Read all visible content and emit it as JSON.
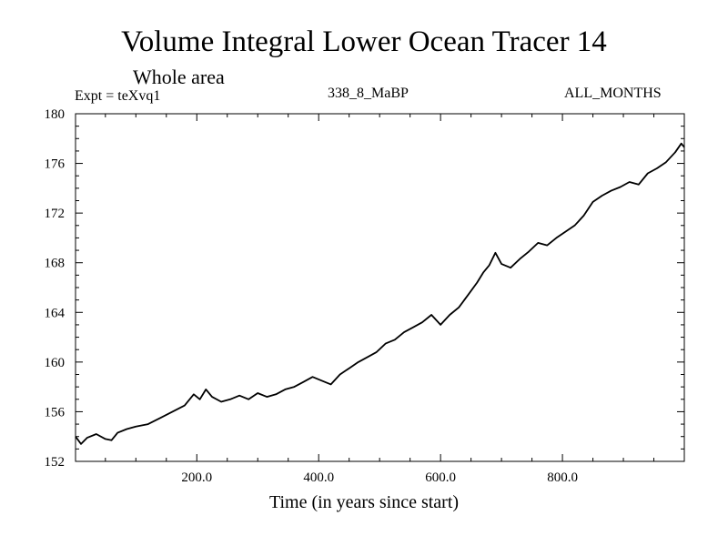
{
  "header": {
    "title": "Volume Integral Lower Ocean Tracer 14",
    "subtitle": "Whole area",
    "experiment": "Expt = teXvq1",
    "run_name": "338_8_MaBP",
    "season": "ALL_MONTHS"
  },
  "chart_data": {
    "type": "line",
    "title": "Volume Integral Lower Ocean Tracer 14",
    "subtitle": "Whole area",
    "xlabel": "Time (in years since start)",
    "ylabel": "",
    "xlim": [
      1,
      1000
    ],
    "ylim": [
      152,
      180
    ],
    "x_ticks": [
      200,
      400,
      600,
      800
    ],
    "x_tick_labels": [
      "200.0",
      "400.0",
      "600.0",
      "800.0"
    ],
    "y_ticks": [
      152,
      156,
      160,
      164,
      168,
      172,
      176,
      180
    ],
    "y_tick_labels": [
      "152",
      "156",
      "160",
      "164",
      "168",
      "172",
      "176",
      "180"
    ],
    "series": [
      {
        "name": "Tracer 14",
        "x": [
          1,
          10,
          20,
          35,
          50,
          60,
          70,
          85,
          100,
          120,
          140,
          160,
          180,
          195,
          205,
          215,
          225,
          240,
          255,
          270,
          285,
          300,
          315,
          330,
          345,
          360,
          375,
          390,
          405,
          420,
          435,
          450,
          465,
          480,
          495,
          510,
          525,
          540,
          555,
          570,
          585,
          600,
          615,
          630,
          645,
          660,
          670,
          680,
          690,
          700,
          715,
          730,
          745,
          760,
          775,
          790,
          805,
          820,
          835,
          850,
          865,
          880,
          895,
          910,
          925,
          940,
          955,
          970,
          985,
          995,
          1000
        ],
        "values": [
          154.0,
          153.4,
          153.9,
          154.2,
          153.8,
          153.7,
          154.3,
          154.6,
          154.8,
          155.0,
          155.5,
          156.0,
          156.5,
          157.4,
          157.0,
          157.8,
          157.2,
          156.8,
          157.0,
          157.3,
          157.0,
          157.5,
          157.2,
          157.4,
          157.8,
          158.0,
          158.4,
          158.8,
          158.5,
          158.2,
          159.0,
          159.5,
          160.0,
          160.4,
          160.8,
          161.5,
          161.8,
          162.4,
          162.8,
          163.2,
          163.8,
          163.0,
          163.8,
          164.4,
          165.4,
          166.4,
          167.2,
          167.8,
          168.8,
          167.9,
          167.6,
          168.3,
          168.9,
          169.6,
          169.4,
          170.0,
          170.5,
          171.0,
          171.8,
          172.9,
          173.4,
          173.8,
          174.1,
          174.5,
          174.3,
          175.2,
          175.6,
          176.1,
          176.9,
          177.6,
          177.3
        ]
      }
    ]
  }
}
